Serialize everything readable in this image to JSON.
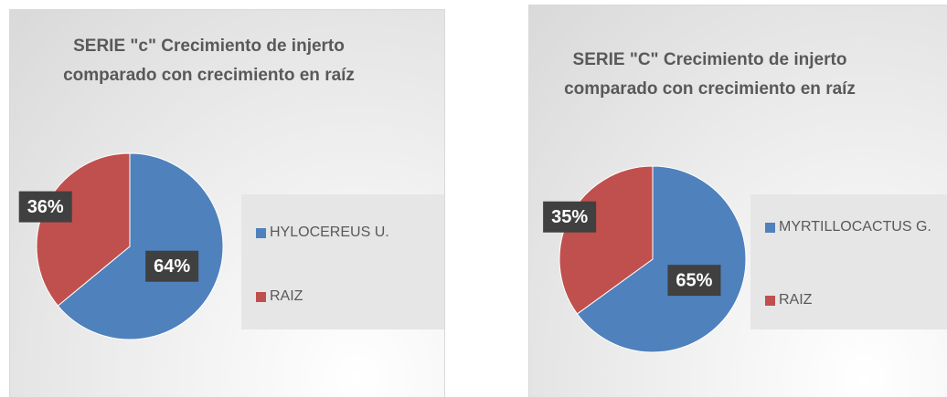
{
  "chart_data": [
    {
      "type": "pie",
      "title": "SERIE \"c\" Crecimiento de injerto comparado con crecimiento en raíz",
      "categories": [
        "HYLOCEREUS U.",
        "RAIZ"
      ],
      "values": [
        64,
        36
      ],
      "value_labels": [
        "64%",
        "36%"
      ],
      "colors": [
        "#4f81bd",
        "#c0504d"
      ],
      "legend": "right"
    },
    {
      "type": "pie",
      "title": "SERIE \"C\" Crecimiento de injerto comparado con crecimiento en raíz",
      "categories": [
        "MYRTILLOCACTUS G.",
        "RAIZ"
      ],
      "values": [
        65,
        35
      ],
      "value_labels": [
        "65%",
        "35%"
      ],
      "colors": [
        "#4f81bd",
        "#c0504d"
      ],
      "legend": "right"
    }
  ]
}
